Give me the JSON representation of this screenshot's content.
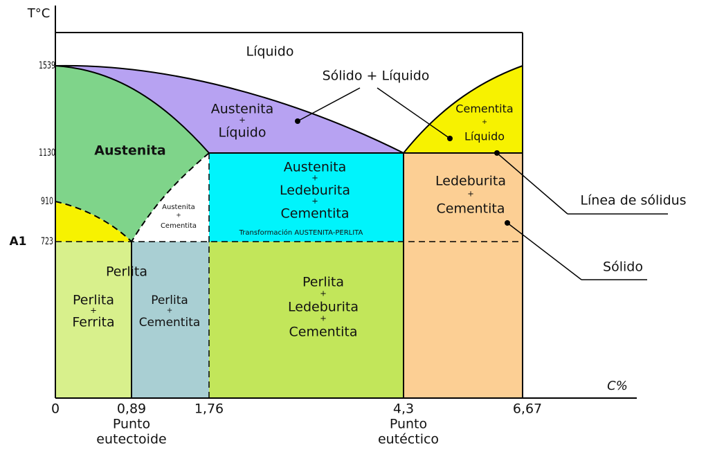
{
  "diagram": {
    "axes": {
      "y_label": "T°C",
      "x_label": "C%",
      "y_ticks": [
        "1539",
        "1130",
        "910",
        "723"
      ],
      "a1_label": "A1",
      "x_ticks": [
        "0",
        "0,89",
        "1,76",
        "4,3",
        "6,67"
      ],
      "x_notes": [
        [
          "Punto",
          "eutectoide"
        ],
        [
          "Punto",
          "eutéctico"
        ]
      ]
    },
    "regions": [
      {
        "lines": [
          "Líquido"
        ]
      },
      {
        "lines": [
          "Austenita",
          "+",
          "Líquido"
        ]
      },
      {
        "lines": [
          "Austenita"
        ]
      },
      {
        "lines": [
          "Austenita",
          "+",
          "Cementita"
        ]
      },
      {
        "lines": [
          "Austenita",
          "+",
          "Ledeburita",
          "+",
          "Cementita"
        ]
      },
      {
        "lines": [
          "Transformación AUSTENITA-PERLITA"
        ]
      },
      {
        "lines": [
          "Cementita",
          "+",
          "Líquido"
        ]
      },
      {
        "lines": [
          "Ledeburita",
          "+",
          "Cementita"
        ]
      },
      {
        "lines": [
          "Perlita"
        ]
      },
      {
        "lines": [
          "Perlita",
          "+",
          "Ferrita"
        ]
      },
      {
        "lines": [
          "Perlita",
          "+",
          "Cementita"
        ]
      },
      {
        "lines": [
          "Perlita",
          "+",
          "Ledeburita",
          "+",
          "Cementita"
        ]
      }
    ],
    "annotations": [
      "Sólido + Líquido",
      "Línea de sólidus",
      "Sólido"
    ]
  }
}
